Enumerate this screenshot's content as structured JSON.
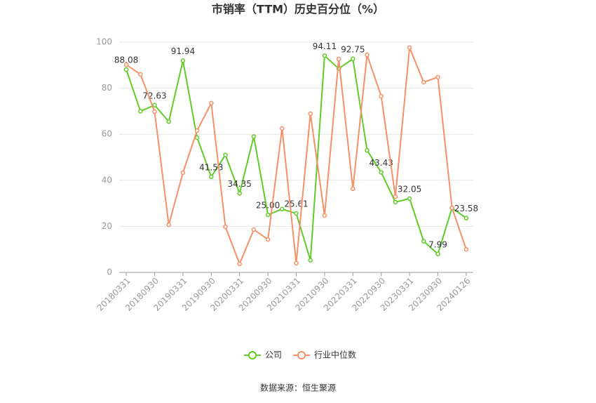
{
  "chart_data": {
    "type": "line",
    "title": "市销率（TTM）历史百分位（%）",
    "categories": [
      "20180331",
      null,
      "20180930",
      null,
      "20190331",
      null,
      "20190930",
      null,
      "20200331",
      null,
      "20200930",
      null,
      "20210331",
      null,
      "20210930",
      null,
      "20220331",
      null,
      "20220930",
      null,
      "20230331",
      null,
      "20230930",
      null,
      "20240126"
    ],
    "series": [
      {
        "name": "公司",
        "color": "#5fcc29",
        "values": [
          88.08,
          70,
          72.63,
          65.5,
          91.94,
          58.5,
          41.53,
          51,
          34.35,
          59,
          25.0,
          27.5,
          25.61,
          5.3,
          94.11,
          88.5,
          92.75,
          53,
          43.43,
          30.5,
          32.05,
          13.5,
          7.99,
          28,
          23.58
        ],
        "value_labels": [
          "88.08",
          null,
          "72.63",
          null,
          "91.94",
          null,
          "41.53",
          null,
          "34.35",
          null,
          "25.00",
          null,
          "25.61",
          null,
          "94.11",
          null,
          "92.75",
          null,
          "43.43",
          null,
          "32.05",
          null,
          "7.99",
          null,
          "23.58"
        ]
      },
      {
        "name": "行业中位数",
        "color": "#f59067",
        "values": [
          90.2,
          86,
          69.8,
          20.7,
          43.3,
          61.6,
          73.5,
          19.8,
          3.7,
          18.6,
          14.3,
          62.5,
          4,
          68.9,
          24.7,
          92.7,
          36.3,
          94.5,
          76.5,
          32.9,
          97.6,
          82.6,
          84.8,
          28,
          10
        ]
      }
    ],
    "ylim": [
      0,
      100
    ],
    "yticks": [
      0,
      20,
      40,
      60,
      80,
      100
    ],
    "grid": true,
    "source": "数据来源：恒生聚源"
  }
}
